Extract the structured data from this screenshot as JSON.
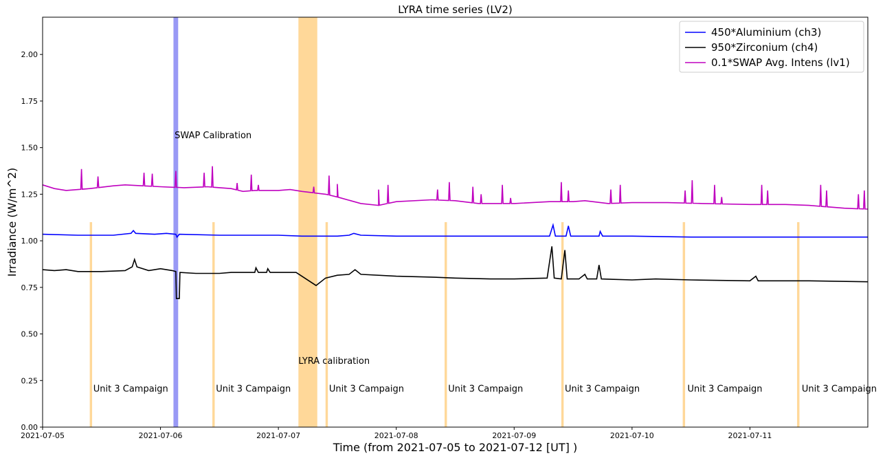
{
  "chart_data": {
    "type": "line",
    "title": "LYRA time series (LV2)",
    "xlabel": "Time (from 2021-07-05 to 2021-07-12 [UT] )",
    "ylabel": "Irradiance (W/m^2)",
    "xlim_days": [
      0,
      7
    ],
    "ylim": [
      0,
      2.2
    ],
    "x_ticks": [
      {
        "t": 0,
        "label": "2021-07-05"
      },
      {
        "t": 1,
        "label": "2021-07-06"
      },
      {
        "t": 2,
        "label": "2021-07-07"
      },
      {
        "t": 3,
        "label": "2021-07-08"
      },
      {
        "t": 4,
        "label": "2021-07-09"
      },
      {
        "t": 5,
        "label": "2021-07-10"
      },
      {
        "t": 6,
        "label": "2021-07-11"
      }
    ],
    "y_ticks": [
      {
        "v": 0,
        "label": "0.00"
      },
      {
        "v": 0.25,
        "label": "0.25"
      },
      {
        "v": 0.5,
        "label": "0.50"
      },
      {
        "v": 0.75,
        "label": "0.75"
      },
      {
        "v": 1.0,
        "label": "1.00"
      },
      {
        "v": 1.25,
        "label": "1.25"
      },
      {
        "v": 1.5,
        "label": "1.50"
      },
      {
        "v": 1.75,
        "label": "1.75"
      },
      {
        "v": 2.0,
        "label": "2.00"
      }
    ],
    "legend_position": "top-right",
    "series": [
      {
        "name": "450*Aluminium (ch3)",
        "color": "#0000ff",
        "points": [
          [
            0,
            1.035
          ],
          [
            0.3,
            1.03
          ],
          [
            0.6,
            1.03
          ],
          [
            0.75,
            1.04
          ],
          [
            0.77,
            1.055
          ],
          [
            0.79,
            1.04
          ],
          [
            0.95,
            1.035
          ],
          [
            1.05,
            1.04
          ],
          [
            1.13,
            1.035
          ],
          [
            1.14,
            1.02
          ],
          [
            1.16,
            1.035
          ],
          [
            1.5,
            1.03
          ],
          [
            1.8,
            1.03
          ],
          [
            2.0,
            1.03
          ],
          [
            2.2,
            1.025
          ],
          [
            2.5,
            1.025
          ],
          [
            2.6,
            1.03
          ],
          [
            2.64,
            1.04
          ],
          [
            2.7,
            1.03
          ],
          [
            3.0,
            1.025
          ],
          [
            3.5,
            1.025
          ],
          [
            3.8,
            1.025
          ],
          [
            4.0,
            1.025
          ],
          [
            4.3,
            1.025
          ],
          [
            4.33,
            1.085
          ],
          [
            4.35,
            1.025
          ],
          [
            4.44,
            1.025
          ],
          [
            4.46,
            1.08
          ],
          [
            4.48,
            1.025
          ],
          [
            4.6,
            1.025
          ],
          [
            4.72,
            1.025
          ],
          [
            4.73,
            1.05
          ],
          [
            4.75,
            1.025
          ],
          [
            5.0,
            1.025
          ],
          [
            5.5,
            1.02
          ],
          [
            6.0,
            1.02
          ],
          [
            6.5,
            1.02
          ],
          [
            7.0,
            1.02
          ]
        ]
      },
      {
        "name": "950*Zirconium (ch4)",
        "color": "#000000",
        "points": [
          [
            0,
            0.845
          ],
          [
            0.1,
            0.84
          ],
          [
            0.2,
            0.845
          ],
          [
            0.3,
            0.835
          ],
          [
            0.5,
            0.835
          ],
          [
            0.7,
            0.84
          ],
          [
            0.76,
            0.86
          ],
          [
            0.78,
            0.9
          ],
          [
            0.8,
            0.86
          ],
          [
            0.9,
            0.84
          ],
          [
            1.0,
            0.85
          ],
          [
            1.1,
            0.84
          ],
          [
            1.13,
            0.835
          ],
          [
            1.135,
            0.69
          ],
          [
            1.16,
            0.69
          ],
          [
            1.165,
            0.83
          ],
          [
            1.3,
            0.825
          ],
          [
            1.5,
            0.825
          ],
          [
            1.6,
            0.83
          ],
          [
            1.8,
            0.83
          ],
          [
            1.81,
            0.855
          ],
          [
            1.83,
            0.83
          ],
          [
            1.9,
            0.83
          ],
          [
            1.91,
            0.85
          ],
          [
            1.93,
            0.83
          ],
          [
            2.0,
            0.83
          ],
          [
            2.15,
            0.83
          ],
          [
            2.32,
            0.76
          ],
          [
            2.4,
            0.8
          ],
          [
            2.5,
            0.815
          ],
          [
            2.6,
            0.82
          ],
          [
            2.65,
            0.845
          ],
          [
            2.7,
            0.82
          ],
          [
            3.0,
            0.81
          ],
          [
            3.3,
            0.805
          ],
          [
            3.5,
            0.8
          ],
          [
            3.8,
            0.795
          ],
          [
            4.0,
            0.795
          ],
          [
            4.28,
            0.8
          ],
          [
            4.32,
            0.97
          ],
          [
            4.34,
            0.8
          ],
          [
            4.4,
            0.795
          ],
          [
            4.43,
            0.95
          ],
          [
            4.45,
            0.795
          ],
          [
            4.55,
            0.795
          ],
          [
            4.6,
            0.82
          ],
          [
            4.62,
            0.795
          ],
          [
            4.7,
            0.795
          ],
          [
            4.72,
            0.87
          ],
          [
            4.74,
            0.795
          ],
          [
            5.0,
            0.79
          ],
          [
            5.2,
            0.795
          ],
          [
            5.5,
            0.79
          ],
          [
            6.0,
            0.785
          ],
          [
            6.05,
            0.81
          ],
          [
            6.07,
            0.785
          ],
          [
            6.5,
            0.785
          ],
          [
            7.0,
            0.78
          ]
        ]
      },
      {
        "name": "0.1*SWAP Avg. Intens (lv1)",
        "color": "#bf00bf",
        "points": [
          [
            0,
            1.3
          ],
          [
            0.1,
            1.28
          ],
          [
            0.2,
            1.27
          ],
          [
            0.3,
            1.275
          ],
          [
            0.4,
            1.28
          ],
          [
            0.6,
            1.295
          ],
          [
            0.7,
            1.3
          ],
          [
            0.85,
            1.295
          ],
          [
            1.0,
            1.29
          ],
          [
            1.2,
            1.285
          ],
          [
            1.4,
            1.29
          ],
          [
            1.6,
            1.28
          ],
          [
            1.7,
            1.265
          ],
          [
            1.8,
            1.27
          ],
          [
            2.0,
            1.27
          ],
          [
            2.1,
            1.275
          ],
          [
            2.2,
            1.265
          ],
          [
            2.4,
            1.25
          ],
          [
            2.5,
            1.235
          ],
          [
            2.7,
            1.2
          ],
          [
            2.85,
            1.19
          ],
          [
            3.0,
            1.21
          ],
          [
            3.3,
            1.22
          ],
          [
            3.5,
            1.215
          ],
          [
            3.7,
            1.2
          ],
          [
            4.0,
            1.2
          ],
          [
            4.3,
            1.21
          ],
          [
            4.5,
            1.21
          ],
          [
            4.6,
            1.215
          ],
          [
            4.8,
            1.2
          ],
          [
            5.0,
            1.205
          ],
          [
            5.3,
            1.205
          ],
          [
            5.6,
            1.2
          ],
          [
            6.0,
            1.195
          ],
          [
            6.3,
            1.195
          ],
          [
            6.5,
            1.19
          ],
          [
            6.8,
            1.175
          ],
          [
            7.0,
            1.17
          ]
        ],
        "spikes": [
          [
            0.33,
            1.385
          ],
          [
            0.47,
            1.345
          ],
          [
            0.86,
            1.365
          ],
          [
            0.93,
            1.36
          ],
          [
            1.13,
            1.375
          ],
          [
            1.37,
            1.365
          ],
          [
            1.44,
            1.4
          ],
          [
            1.65,
            1.31
          ],
          [
            1.77,
            1.355
          ],
          [
            1.83,
            1.3
          ],
          [
            2.3,
            1.29
          ],
          [
            2.43,
            1.35
          ],
          [
            2.5,
            1.305
          ],
          [
            2.85,
            1.275
          ],
          [
            2.93,
            1.3
          ],
          [
            3.35,
            1.275
          ],
          [
            3.45,
            1.315
          ],
          [
            3.65,
            1.29
          ],
          [
            3.72,
            1.25
          ],
          [
            3.9,
            1.3
          ],
          [
            3.97,
            1.23
          ],
          [
            4.4,
            1.315
          ],
          [
            4.46,
            1.27
          ],
          [
            4.82,
            1.275
          ],
          [
            4.9,
            1.3
          ],
          [
            5.45,
            1.27
          ],
          [
            5.51,
            1.325
          ],
          [
            5.7,
            1.3
          ],
          [
            5.76,
            1.235
          ],
          [
            6.1,
            1.3
          ],
          [
            6.15,
            1.27
          ],
          [
            6.6,
            1.3
          ],
          [
            6.65,
            1.27
          ],
          [
            6.92,
            1.25
          ],
          [
            6.97,
            1.27
          ]
        ]
      }
    ],
    "bands": [
      {
        "type": "SWAP Calibration",
        "start": 1.11,
        "end": 1.15,
        "color": "#9999f5",
        "height": 2.2
      },
      {
        "type": "LYRA calibration",
        "start": 2.17,
        "end": 2.33,
        "color": "#ffd899",
        "height": 2.2
      },
      {
        "type": "Unit 3 Campaign",
        "start": 0.4,
        "end": 0.42,
        "color": "#ffd899",
        "height": 1.1
      },
      {
        "type": "Unit 3 Campaign",
        "start": 1.44,
        "end": 1.46,
        "color": "#ffd899",
        "height": 1.1
      },
      {
        "type": "Unit 3 Campaign",
        "start": 2.4,
        "end": 2.42,
        "color": "#ffd899",
        "height": 1.1
      },
      {
        "type": "Unit 3 Campaign",
        "start": 3.41,
        "end": 3.43,
        "color": "#ffd899",
        "height": 1.1
      },
      {
        "type": "Unit 3 Campaign",
        "start": 4.4,
        "end": 4.42,
        "color": "#ffd899",
        "height": 1.1
      },
      {
        "type": "Unit 3 Campaign",
        "start": 5.43,
        "end": 5.45,
        "color": "#ffd899",
        "height": 1.1
      },
      {
        "type": "Unit 3 Campaign",
        "start": 6.4,
        "end": 6.42,
        "color": "#ffd899",
        "height": 1.1
      }
    ],
    "annotations": [
      {
        "text": "SWAP Calibration",
        "t": 1.12,
        "v": 1.55
      },
      {
        "text": "LYRA calibration",
        "t": 2.17,
        "v": 0.34
      },
      {
        "text": "Unit 3 Campaign",
        "t": 0.43,
        "v": 0.19
      },
      {
        "text": "Unit 3 Campaign",
        "t": 1.47,
        "v": 0.19
      },
      {
        "text": "Unit 3 Campaign",
        "t": 2.43,
        "v": 0.19
      },
      {
        "text": "Unit 3 Campaign",
        "t": 3.44,
        "v": 0.19
      },
      {
        "text": "Unit 3 Campaign",
        "t": 4.43,
        "v": 0.19
      },
      {
        "text": "Unit 3 Campaign",
        "t": 5.47,
        "v": 0.19
      },
      {
        "text": "Unit 3 Campaign",
        "t": 6.44,
        "v": 0.19
      }
    ]
  }
}
